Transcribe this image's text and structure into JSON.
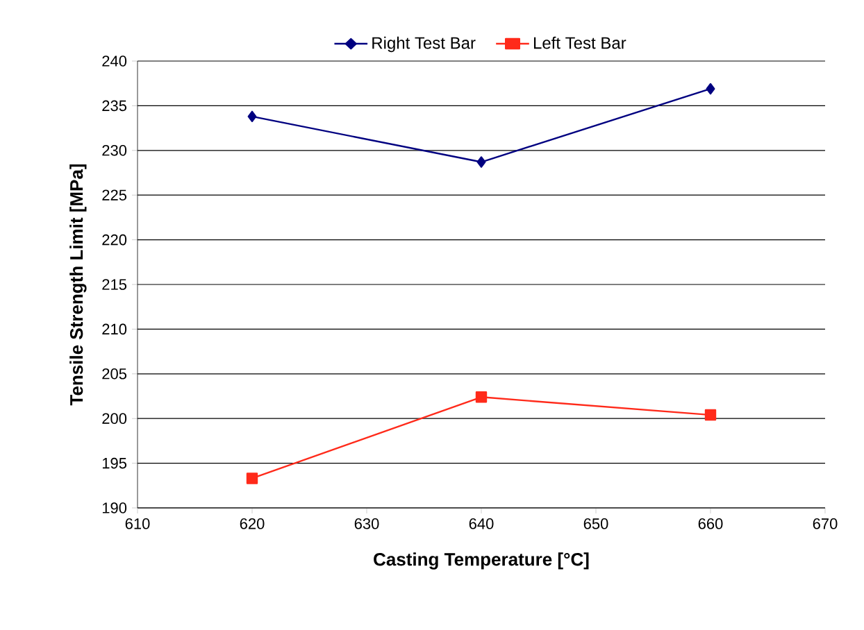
{
  "chart_data": {
    "type": "line",
    "xlabel": "Casting Temperature [°C]",
    "ylabel": "Tensile Strength Limit [MPa]",
    "x": [
      620,
      640,
      660
    ],
    "series": [
      {
        "name": "Right Test Bar",
        "color": "#000080",
        "marker": "diamond",
        "values": [
          233.8,
          228.7,
          236.9
        ]
      },
      {
        "name": "Left Test Bar",
        "color": "#ff2a1a",
        "marker": "square",
        "values": [
          193.3,
          202.4,
          200.4
        ]
      }
    ],
    "xlim": [
      610,
      670
    ],
    "xticks": [
      610,
      620,
      630,
      640,
      650,
      660,
      670
    ],
    "ylim": [
      190,
      240
    ],
    "yticks": [
      190,
      195,
      200,
      205,
      210,
      215,
      220,
      225,
      230,
      235,
      240
    ],
    "grid": "y",
    "legend": "top"
  }
}
